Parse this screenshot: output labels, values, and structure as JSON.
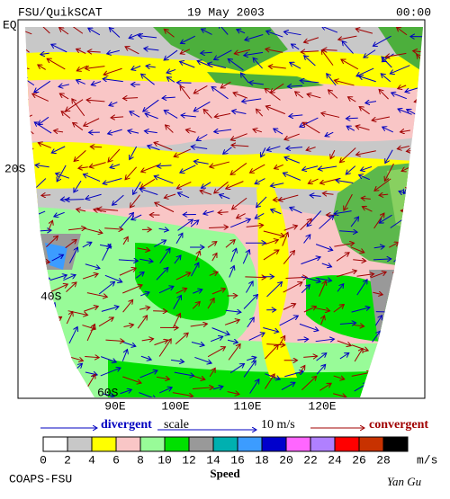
{
  "header": {
    "left": "FSU/QuikSCAT",
    "date": "19 May 2003",
    "time": "00:00"
  },
  "lat_labels": [
    "EQ",
    "20S",
    "40S",
    "60S"
  ],
  "lon_labels": [
    "90E",
    "100E",
    "110E",
    "120E"
  ],
  "scale_legend": {
    "divergent": "divergent",
    "scale": "scale",
    "speed": "10 m/s",
    "convergent": "convergent"
  },
  "colorbar": {
    "labels": [
      "0",
      "2",
      "4",
      "6",
      "8",
      "10",
      "12",
      "14",
      "16",
      "18",
      "20",
      "22",
      "24",
      "26",
      "28"
    ],
    "unit": "m/s",
    "title": "Speed"
  },
  "footer": {
    "left": "COAPS-FSU",
    "right": "Yan Gu"
  }
}
